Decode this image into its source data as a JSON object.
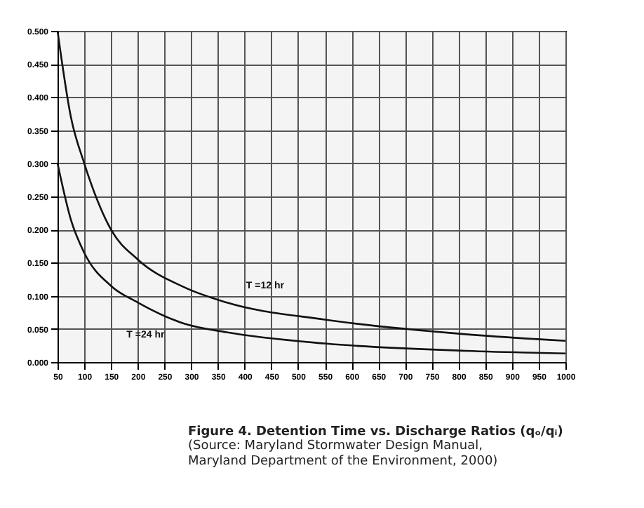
{
  "chart_data": {
    "type": "line",
    "title": "Figure 4.   Detention Time vs. Discharge Ratios (qₒ/qᵢ)",
    "annotations": [
      "(Source: Maryland Stormwater Design Manual,\nMaryland Department of the Environment, 2000)"
    ],
    "series": [
      {
        "name": "T =12 hr",
        "color": "#111111",
        "x": [
          50,
          75,
          100,
          150,
          200,
          287,
          366,
          550,
          813,
          1000
        ],
        "values": [
          0.5,
          0.37,
          0.3,
          0.2,
          0.155,
          0.113,
          0.09,
          0.064,
          0.042,
          0.032
        ]
      },
      {
        "name": "T =24 hr",
        "color": "#111111",
        "x": [
          50,
          75,
          100,
          150,
          200,
          287,
          366,
          550,
          813,
          1000
        ],
        "values": [
          0.3,
          0.215,
          0.165,
          0.115,
          0.09,
          0.058,
          0.045,
          0.028,
          0.017,
          0.013
        ]
      }
    ],
    "xlim": [
      50,
      1000
    ],
    "xticks": [
      50,
      100,
      150,
      200,
      250,
      300,
      350,
      400,
      450,
      500,
      550,
      600,
      650,
      700,
      750,
      800,
      850,
      900,
      950,
      1000
    ],
    "ylim": [
      0,
      0.5
    ],
    "yticks": [
      {
        "value": 0,
        "label": "0.000"
      },
      {
        "value": 0.05,
        "label": "0.050"
      },
      {
        "value": 0.1,
        "label": "0.100"
      },
      {
        "value": 0.15,
        "label": "0.150"
      },
      {
        "value": 0.2,
        "label": "0.200"
      },
      {
        "value": 0.25,
        "label": "0.250"
      },
      {
        "value": 0.3,
        "label": "0.300"
      },
      {
        "value": 0.35,
        "label": "0.350"
      },
      {
        "value": 0.4,
        "label": "0.400"
      },
      {
        "value": 0.45,
        "label": "0.450"
      },
      {
        "value": 0.5,
        "label": "0.500"
      }
    ],
    "grid": true,
    "marker": "none",
    "line_style": "solid"
  }
}
